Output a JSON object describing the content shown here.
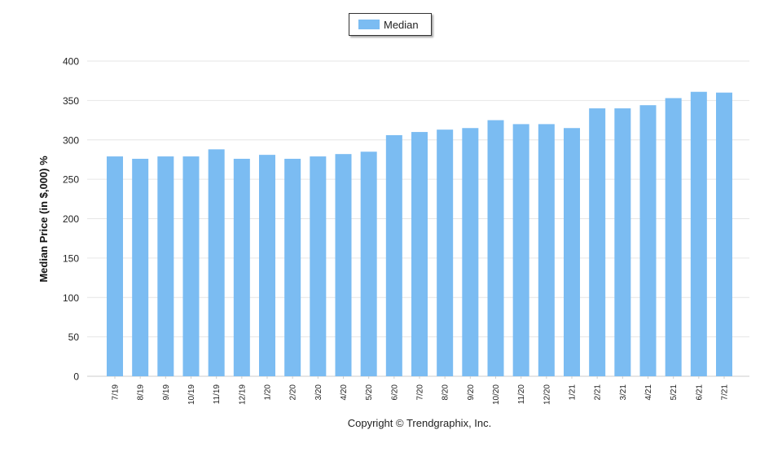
{
  "legend": {
    "label": "Median"
  },
  "copyright": "Copyright © Trendgraphix, Inc.",
  "colors": {
    "bar": "#7bbcf2",
    "grid": "#e6e6e6",
    "axis": "#cccccc",
    "text": "#222222"
  },
  "chart_data": {
    "type": "bar",
    "ylabel": "Median Price (in $,000) %",
    "xlabel": "",
    "ylim": [
      0,
      400
    ],
    "yticks": [
      0,
      50,
      100,
      150,
      200,
      250,
      300,
      350,
      400
    ],
    "grid": true,
    "legend_position": "top-center",
    "categories": [
      "7/19",
      "8/19",
      "9/19",
      "10/19",
      "11/19",
      "12/19",
      "1/20",
      "2/20",
      "3/20",
      "4/20",
      "5/20",
      "6/20",
      "7/20",
      "8/20",
      "9/20",
      "10/20",
      "11/20",
      "12/20",
      "1/21",
      "2/21",
      "3/21",
      "4/21",
      "5/21",
      "6/21",
      "7/21"
    ],
    "series": [
      {
        "name": "Median",
        "values": [
          279,
          276,
          279,
          279,
          288,
          276,
          281,
          276,
          279,
          282,
          285,
          306,
          310,
          313,
          315,
          325,
          320,
          320,
          315,
          340,
          340,
          344,
          353,
          361,
          360
        ]
      }
    ]
  }
}
